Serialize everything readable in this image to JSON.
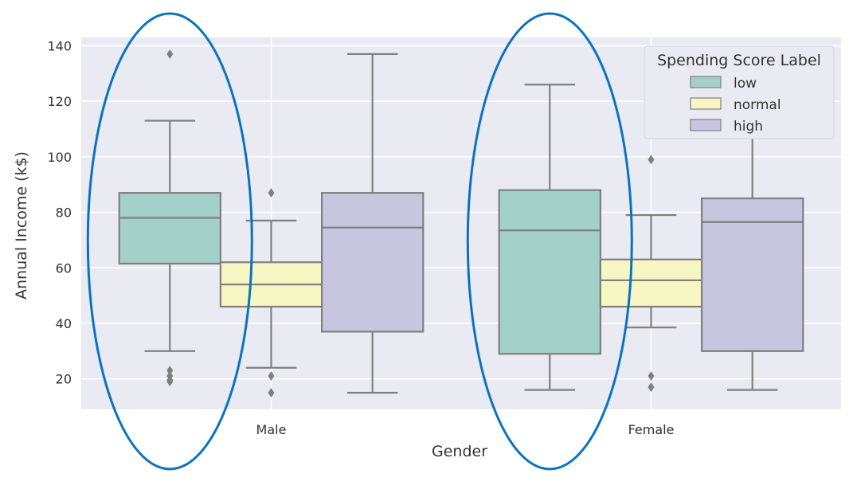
{
  "chart_data": {
    "type": "box",
    "xlabel": "Gender",
    "ylabel": "Annual Income (k$)",
    "categories": [
      "Male",
      "Female"
    ],
    "ylim": [
      9,
      143
    ],
    "yticks": [
      20,
      40,
      60,
      80,
      100,
      120,
      140
    ],
    "grid": true,
    "legend": {
      "title": "Spending Score Label",
      "placement": "top-right",
      "entries": [
        "low",
        "normal",
        "high"
      ]
    },
    "series": [
      {
        "name": "low",
        "color": "#a3d0c7",
        "boxes": [
          {
            "category": "Male",
            "whisker_low": 30,
            "q1": 61.5,
            "median": 78,
            "q3": 87,
            "whisker_high": 113,
            "outliers": [
              137,
              23,
              21,
              19.5,
              19
            ]
          },
          {
            "category": "Female",
            "whisker_low": 16,
            "q1": 29,
            "median": 73.5,
            "q3": 88,
            "whisker_high": 126,
            "outliers": []
          }
        ]
      },
      {
        "name": "normal",
        "color": "#f6f6c2",
        "boxes": [
          {
            "category": "Male",
            "whisker_low": 24,
            "q1": 46,
            "median": 54,
            "q3": 62,
            "whisker_high": 77,
            "outliers": [
              87,
              21,
              15
            ]
          },
          {
            "category": "Female",
            "whisker_low": 38.5,
            "q1": 46,
            "median": 55.5,
            "q3": 63,
            "whisker_high": 79,
            "outliers": [
              99,
              21,
              17
            ]
          }
        ]
      },
      {
        "name": "high",
        "color": "#c8c6de",
        "boxes": [
          {
            "category": "Male",
            "whisker_low": 15,
            "q1": 37,
            "median": 74.5,
            "q3": 87,
            "whisker_high": 137,
            "outliers": []
          },
          {
            "category": "Female",
            "whisker_low": 16,
            "q1": 30,
            "median": 76.5,
            "q3": 85,
            "whisker_high": 120,
            "outliers": []
          }
        ]
      }
    ],
    "annotations": [
      {
        "type": "ellipse",
        "around": "Male low",
        "color": "#0a73c0"
      },
      {
        "type": "ellipse",
        "around": "Female low",
        "color": "#0a73c0"
      }
    ]
  }
}
